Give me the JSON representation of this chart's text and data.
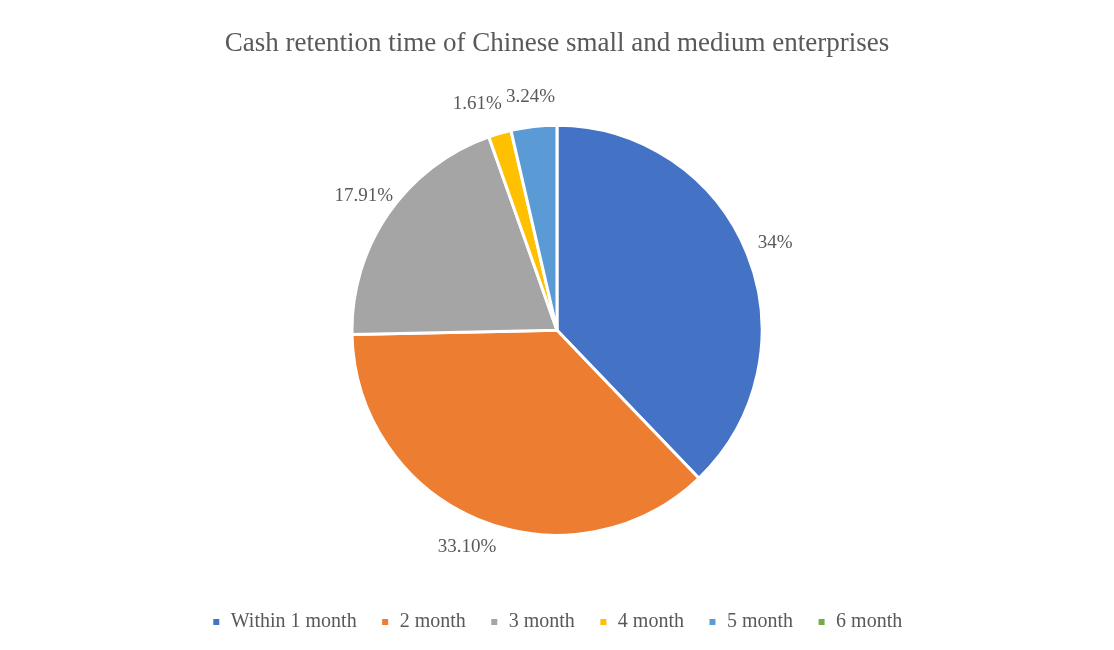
{
  "chart_data": {
    "type": "pie",
    "title": "Cash retention time of Chinese small and medium enterprises",
    "categories": [
      "Within 1 month",
      "2 month",
      "3 month",
      "4 month",
      "5 month",
      "6 month"
    ],
    "values": [
      34,
      33.1,
      17.91,
      1.61,
      3.24,
      0
    ],
    "colors": [
      "#4472c4",
      "#ed7d31",
      "#a5a5a5",
      "#ffc000",
      "#5b9bd5",
      "#70ad47"
    ],
    "value_labels": [
      "34%",
      "33.10%",
      "17.91%",
      "1.61%",
      "3.24%",
      null
    ],
    "legend": "bottom"
  }
}
